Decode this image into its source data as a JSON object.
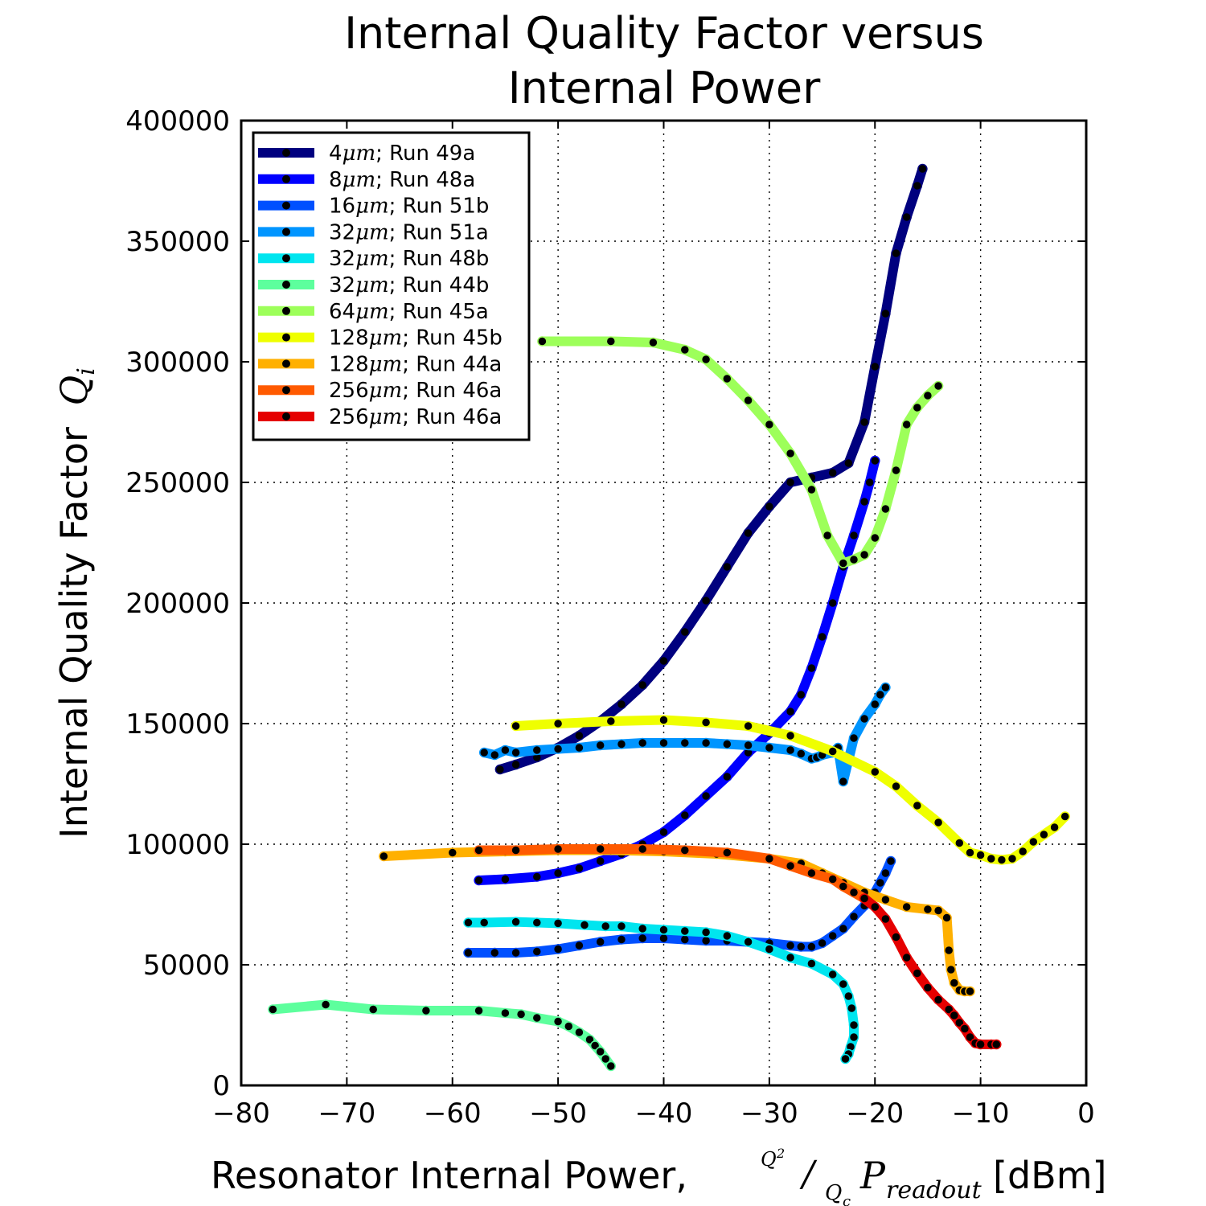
{
  "chart_data": {
    "type": "line",
    "title_line1": "Internal Quality Factor versus",
    "title_line2": "Internal Power",
    "xlabel_text": "Resonator Internal Power,",
    "xlabel_math": {
      "numerator": "Q",
      "numerator_sup": "2",
      "slash": "/",
      "denominator": "Q",
      "denominator_sub": "c",
      "symbol": "P",
      "symbol_sub": "readout"
    },
    "xlabel_unit": "[dBm]",
    "ylabel_text": "Internal Quality Factor",
    "ylabel_math": {
      "symbol": "Q",
      "sub": "i"
    },
    "xlim": [
      -80,
      0
    ],
    "ylim": [
      0,
      400000
    ],
    "xticks": [
      -80,
      -70,
      -60,
      -50,
      -40,
      -30,
      -20,
      -10,
      0
    ],
    "xtick_labels": [
      "−80",
      "−70",
      "−60",
      "−50",
      "−40",
      "−30",
      "−20",
      "−10",
      "0"
    ],
    "yticks": [
      0,
      50000,
      100000,
      150000,
      200000,
      250000,
      300000,
      350000,
      400000
    ],
    "ytick_labels": [
      "0",
      "50000",
      "100000",
      "150000",
      "200000",
      "250000",
      "300000",
      "350000",
      "400000"
    ],
    "grid": true,
    "legend_position": "top-left",
    "series": [
      {
        "name": "4μm; Run 49a",
        "width": "4",
        "run": "Run 49a",
        "color": "#00007f",
        "x": [
          -55.5,
          -54,
          -52,
          -50,
          -48,
          -46,
          -44,
          -42,
          -40,
          -38,
          -36,
          -34,
          -32,
          -30,
          -28,
          -26,
          -24,
          -22.5,
          -21,
          -20,
          -19,
          -18,
          -17,
          -16,
          -15.5
        ],
        "y": [
          131000,
          133000,
          136000,
          140000,
          145000,
          151000,
          158000,
          166000,
          176000,
          188000,
          201000,
          215000,
          229000,
          240000,
          250000,
          252000,
          254000,
          258000,
          275000,
          298000,
          320000,
          345000,
          360000,
          373000,
          380000
        ]
      },
      {
        "name": "8μm; Run 48a",
        "width": "8",
        "run": "Run 48a",
        "color": "#0000ff",
        "x": [
          -57.5,
          -55,
          -52,
          -50,
          -48,
          -46,
          -44,
          -42,
          -40,
          -38,
          -36,
          -34,
          -32,
          -30,
          -28,
          -27,
          -26,
          -25,
          -24,
          -23,
          -22,
          -21,
          -20.5,
          -20
        ],
        "y": [
          85000,
          85500,
          86500,
          88000,
          90000,
          93000,
          96000,
          100000,
          105000,
          112000,
          120000,
          128000,
          138000,
          146000,
          155000,
          162000,
          173000,
          186000,
          200000,
          215000,
          228000,
          242000,
          250000,
          259000
        ]
      },
      {
        "name": "16μm; Run 51b",
        "width": "16",
        "run": "Run 51b",
        "color": "#0050ff",
        "x": [
          -58.5,
          -56,
          -54,
          -52,
          -50,
          -48,
          -46,
          -44,
          -42,
          -40,
          -38,
          -36,
          -34,
          -32,
          -30,
          -28,
          -27,
          -26,
          -25,
          -24,
          -23,
          -22,
          -21,
          -20,
          -19.5,
          -19,
          -18.5
        ],
        "y": [
          55000,
          55000,
          55000,
          55500,
          56500,
          58000,
          59500,
          60500,
          61000,
          61000,
          60500,
          60000,
          60000,
          59500,
          59000,
          58000,
          57500,
          57500,
          59000,
          62000,
          65000,
          70000,
          74500,
          80000,
          84000,
          88000,
          93000
        ]
      },
      {
        "name": "32μm; Run 51a",
        "width": "32",
        "run": "Run 51a",
        "color": "#0095ff",
        "x": [
          -57,
          -56,
          -55,
          -54,
          -52,
          -50,
          -48,
          -46,
          -44,
          -42,
          -40,
          -38,
          -36,
          -34,
          -32,
          -30,
          -28,
          -27,
          -26,
          -25.5,
          -25,
          -24,
          -23.5,
          -23,
          -22.5,
          -22,
          -21,
          -20,
          -19.5,
          -19
        ],
        "y": [
          138000,
          137000,
          139000,
          138000,
          139000,
          139500,
          140000,
          141000,
          141500,
          142000,
          142000,
          142000,
          142000,
          141500,
          141000,
          140000,
          139000,
          137500,
          135500,
          136000,
          137000,
          138000,
          140000,
          126000,
          135000,
          144000,
          152000,
          158000,
          162000,
          165000
        ]
      },
      {
        "name": "32μm; Run 48b",
        "width": "32",
        "run": "Run 48b",
        "color": "#00e5ef",
        "x": [
          -58.5,
          -57,
          -54,
          -52,
          -50,
          -47.5,
          -45.5,
          -44,
          -42,
          -40,
          -38,
          -36,
          -34,
          -32,
          -30,
          -28,
          -26,
          -24,
          -23,
          -22.5,
          -22.2,
          -22,
          -22,
          -22.3,
          -22.5,
          -22.8
        ],
        "y": [
          67500,
          67500,
          67800,
          67500,
          67200,
          66500,
          66000,
          66000,
          65000,
          64500,
          64000,
          63500,
          62000,
          59500,
          56500,
          53000,
          50500,
          46000,
          42000,
          37000,
          32000,
          25000,
          20000,
          16000,
          13000,
          11000
        ]
      },
      {
        "name": "32μm; Run 44b",
        "width": "32",
        "run": "Run 44b",
        "color": "#5dff9d",
        "x": [
          -77,
          -72,
          -67.5,
          -62.5,
          -57.5,
          -55,
          -53.5,
          -52,
          -50,
          -49,
          -48,
          -47,
          -46.5,
          -46,
          -45.5,
          -45
        ],
        "y": [
          31500,
          33500,
          31500,
          31000,
          31000,
          30000,
          29500,
          28000,
          26500,
          24500,
          22000,
          19000,
          16500,
          14000,
          11000,
          8000
        ]
      },
      {
        "name": "64μm; Run 45a",
        "width": "64",
        "run": "Run 45a",
        "color": "#9dff5a",
        "x": [
          -51.5,
          -45,
          -41,
          -38,
          -36,
          -34,
          -32,
          -30,
          -28,
          -26,
          -24.5,
          -23,
          -22,
          -21,
          -20,
          -19,
          -18,
          -17,
          -16,
          -15,
          -14
        ],
        "y": [
          308500,
          308500,
          308000,
          305000,
          301000,
          293000,
          284000,
          274000,
          262000,
          247000,
          228000,
          216500,
          218000,
          220000,
          227000,
          239000,
          255000,
          274000,
          281000,
          286000,
          290000
        ]
      },
      {
        "name": "128μm; Run 45b",
        "width": "128",
        "run": "Run 45b",
        "color": "#efff00",
        "x": [
          -54,
          -50,
          -45,
          -40,
          -36,
          -32,
          -28,
          -24,
          -20,
          -18,
          -16,
          -14,
          -12,
          -11,
          -10,
          -9,
          -8,
          -7,
          -6,
          -5,
          -4,
          -3,
          -2
        ],
        "y": [
          149000,
          150000,
          151000,
          151500,
          150500,
          149000,
          145000,
          138500,
          130000,
          124000,
          116000,
          109000,
          100500,
          96500,
          95500,
          94000,
          93500,
          94000,
          97000,
          101000,
          104000,
          107000,
          111500
        ]
      },
      {
        "name": "128μm; Run 44a",
        "width": "128",
        "run": "Run 44a",
        "color": "#ffb000",
        "x": [
          -66.5,
          -60,
          -55,
          -50,
          -45,
          -40,
          -35,
          -30,
          -27,
          -25,
          -23,
          -21,
          -19,
          -17,
          -15,
          -14,
          -13.2,
          -13,
          -12.8,
          -12.5,
          -12,
          -11.5,
          -11
        ],
        "y": [
          95000,
          96500,
          97000,
          97500,
          97500,
          97000,
          96000,
          94000,
          92000,
          88000,
          84000,
          80000,
          77000,
          74000,
          73000,
          72500,
          69500,
          56000,
          48000,
          42500,
          39500,
          39000,
          39000
        ]
      },
      {
        "name": "256μm; Run 46a",
        "width": "256",
        "run": "Run 46a",
        "color": "#ff5a00",
        "x": [
          -57.5,
          -54,
          -50,
          -46,
          -42,
          -38,
          -34,
          -30,
          -28,
          -26,
          -24,
          -23,
          -22,
          -21
        ],
        "y": [
          97500,
          97500,
          98000,
          98000,
          98000,
          97500,
          96500,
          94000,
          91000,
          88000,
          85500,
          82500,
          80000,
          77500
        ]
      },
      {
        "name": "256μm; Run 46a",
        "width": "256",
        "run": "Run 46a",
        "color": "#e50000",
        "x": [
          -21,
          -20,
          -19,
          -18,
          -17,
          -16,
          -15,
          -14,
          -13,
          -12.5,
          -12,
          -11.5,
          -11,
          -10.5,
          -10,
          -9,
          -8.5
        ],
        "y": [
          77500,
          74000,
          69000,
          61500,
          53000,
          46500,
          40500,
          35500,
          31500,
          29000,
          26000,
          23500,
          20000,
          17500,
          17000,
          17000,
          17000
        ]
      }
    ]
  }
}
